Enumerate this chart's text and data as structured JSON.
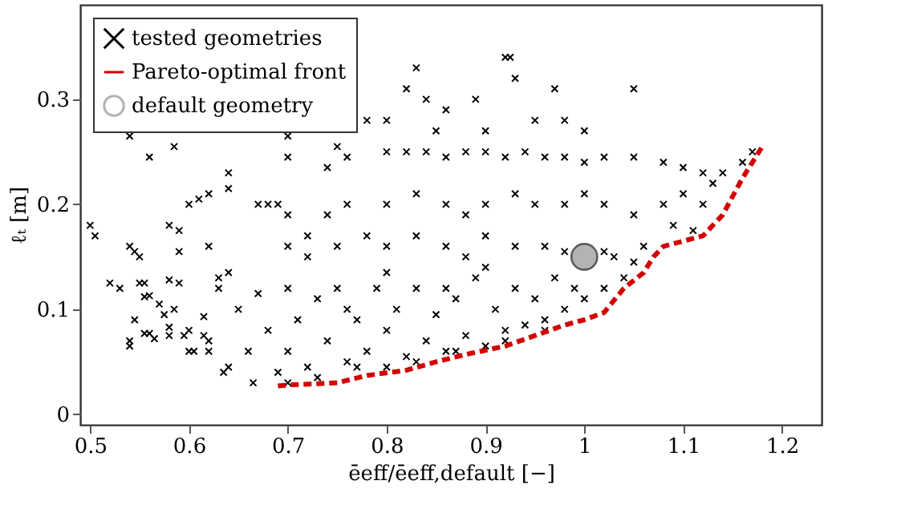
{
  "chart_data": {
    "type": "scatter",
    "xlabel": "ēeff/ēeff,default [−]",
    "ylabel": "ℓₜ [m]",
    "xlim": [
      0.49,
      1.24
    ],
    "ylim": [
      -0.01,
      0.39
    ],
    "xticks": [
      0.5,
      0.6,
      0.7,
      0.8,
      0.9,
      1,
      1.1,
      1.2
    ],
    "yticks": [
      0,
      0.1,
      0.2,
      0.3
    ],
    "grid": false,
    "legend": "top left",
    "series": [
      {
        "name": "tested geometries",
        "type": "scatter",
        "marker": "cross",
        "color": "#000000",
        "x": [
          0.5,
          0.505,
          0.52,
          0.53,
          0.54,
          0.545,
          0.55,
          0.54,
          0.54,
          0.545,
          0.55,
          0.555,
          0.555,
          0.56,
          0.555,
          0.56,
          0.565,
          0.57,
          0.575,
          0.58,
          0.58,
          0.585,
          0.58,
          0.59,
          0.59,
          0.595,
          0.6,
          0.605,
          0.6,
          0.615,
          0.615,
          0.62,
          0.62,
          0.62,
          0.63,
          0.63,
          0.64,
          0.635,
          0.64,
          0.54,
          0.56,
          0.585,
          0.58,
          0.59,
          0.6,
          0.61,
          0.62,
          0.64,
          0.64,
          0.67,
          0.68,
          0.69,
          0.7,
          0.7,
          0.74,
          0.75,
          0.76,
          0.7,
          0.72,
          0.74,
          0.76,
          0.82,
          0.83,
          0.84,
          0.86,
          0.89,
          0.92,
          0.925,
          0.93,
          0.97,
          1.05,
          0.78,
          0.8,
          0.85,
          0.9,
          0.95,
          0.98,
          1.0,
          0.8,
          0.82,
          0.84,
          0.86,
          0.88,
          0.9,
          0.92,
          0.94,
          0.96,
          0.98,
          1.0,
          1.02,
          1.05,
          1.08,
          1.1,
          1.12,
          1.14,
          1.16,
          1.17,
          0.8,
          0.83,
          0.86,
          0.88,
          0.9,
          0.93,
          0.95,
          0.98,
          1.0,
          1.02,
          1.05,
          1.08,
          1.1,
          1.12,
          1.13,
          0.7,
          0.72,
          0.75,
          0.78,
          0.8,
          0.83,
          0.86,
          0.88,
          0.9,
          0.93,
          0.96,
          0.98,
          1.02,
          1.03,
          1.05,
          1.06,
          1.09,
          1.11,
          0.65,
          0.66,
          0.665,
          0.67,
          0.68,
          0.69,
          0.7,
          0.7,
          0.71,
          0.72,
          0.73,
          0.74,
          0.75,
          0.76,
          0.77,
          0.78,
          0.79,
          0.8,
          0.8,
          0.81,
          0.82,
          0.83,
          0.84,
          0.85,
          0.86,
          0.87,
          0.88,
          0.89,
          0.9,
          0.91,
          0.92,
          0.93,
          0.94,
          0.95,
          0.96,
          0.97,
          0.98,
          0.99,
          1.0,
          1.02,
          1.04,
          0.7,
          0.73,
          0.77,
          0.83,
          0.87,
          0.92,
          0.96,
          0.76,
          0.86,
          0.9,
          0.8
        ],
        "values": [
          0.18,
          0.17,
          0.125,
          0.12,
          0.16,
          0.155,
          0.15,
          0.07,
          0.065,
          0.09,
          0.125,
          0.125,
          0.112,
          0.113,
          0.077,
          0.077,
          0.072,
          0.105,
          0.095,
          0.083,
          0.075,
          0.1,
          0.128,
          0.125,
          0.155,
          0.075,
          0.06,
          0.06,
          0.08,
          0.093,
          0.075,
          0.07,
          0.06,
          0.16,
          0.13,
          0.12,
          0.135,
          0.04,
          0.045,
          0.265,
          0.245,
          0.255,
          0.18,
          0.175,
          0.2,
          0.205,
          0.21,
          0.23,
          0.215,
          0.2,
          0.2,
          0.2,
          0.265,
          0.245,
          0.235,
          0.255,
          0.245,
          0.19,
          0.17,
          0.19,
          0.2,
          0.31,
          0.33,
          0.3,
          0.29,
          0.3,
          0.34,
          0.34,
          0.32,
          0.31,
          0.31,
          0.28,
          0.28,
          0.27,
          0.27,
          0.28,
          0.28,
          0.27,
          0.25,
          0.25,
          0.25,
          0.245,
          0.25,
          0.25,
          0.245,
          0.25,
          0.245,
          0.245,
          0.24,
          0.245,
          0.245,
          0.24,
          0.235,
          0.23,
          0.23,
          0.24,
          0.25,
          0.2,
          0.21,
          0.2,
          0.19,
          0.2,
          0.21,
          0.2,
          0.2,
          0.21,
          0.2,
          0.19,
          0.2,
          0.21,
          0.2,
          0.22,
          0.16,
          0.15,
          0.16,
          0.17,
          0.16,
          0.17,
          0.16,
          0.15,
          0.17,
          0.16,
          0.16,
          0.155,
          0.155,
          0.15,
          0.145,
          0.16,
          0.18,
          0.175,
          0.1,
          0.06,
          0.03,
          0.115,
          0.08,
          0.04,
          0.12,
          0.06,
          0.09,
          0.045,
          0.11,
          0.07,
          0.12,
          0.05,
          0.09,
          0.06,
          0.12,
          0.045,
          0.08,
          0.1,
          0.055,
          0.12,
          0.07,
          0.095,
          0.06,
          0.11,
          0.075,
          0.13,
          0.065,
          0.1,
          0.08,
          0.12,
          0.085,
          0.11,
          0.09,
          0.13,
          0.1,
          0.12,
          0.11,
          0.12,
          0.13,
          0.03,
          0.035,
          0.045,
          0.05,
          0.06,
          0.07,
          0.08,
          0.1,
          0.12,
          0.14,
          0.135
        ]
      },
      {
        "name": "Pareto-optimal front",
        "type": "line",
        "line_style": "dashed",
        "color": "#d40000",
        "x": [
          0.69,
          0.7,
          0.75,
          0.78,
          0.82,
          0.85,
          0.88,
          0.92,
          0.95,
          0.98,
          1.0,
          1.02,
          1.04,
          1.06,
          1.07,
          1.08,
          1.12,
          1.14,
          1.16,
          1.18
        ],
        "values": [
          0.027,
          0.028,
          0.03,
          0.037,
          0.042,
          0.05,
          0.057,
          0.065,
          0.075,
          0.085,
          0.09,
          0.097,
          0.12,
          0.135,
          0.15,
          0.16,
          0.17,
          0.19,
          0.225,
          0.255
        ]
      },
      {
        "name": "default geometry",
        "type": "scatter",
        "marker": "circle",
        "color": "#b3b3b3",
        "x": [
          1.0
        ],
        "values": [
          0.15
        ]
      }
    ]
  }
}
